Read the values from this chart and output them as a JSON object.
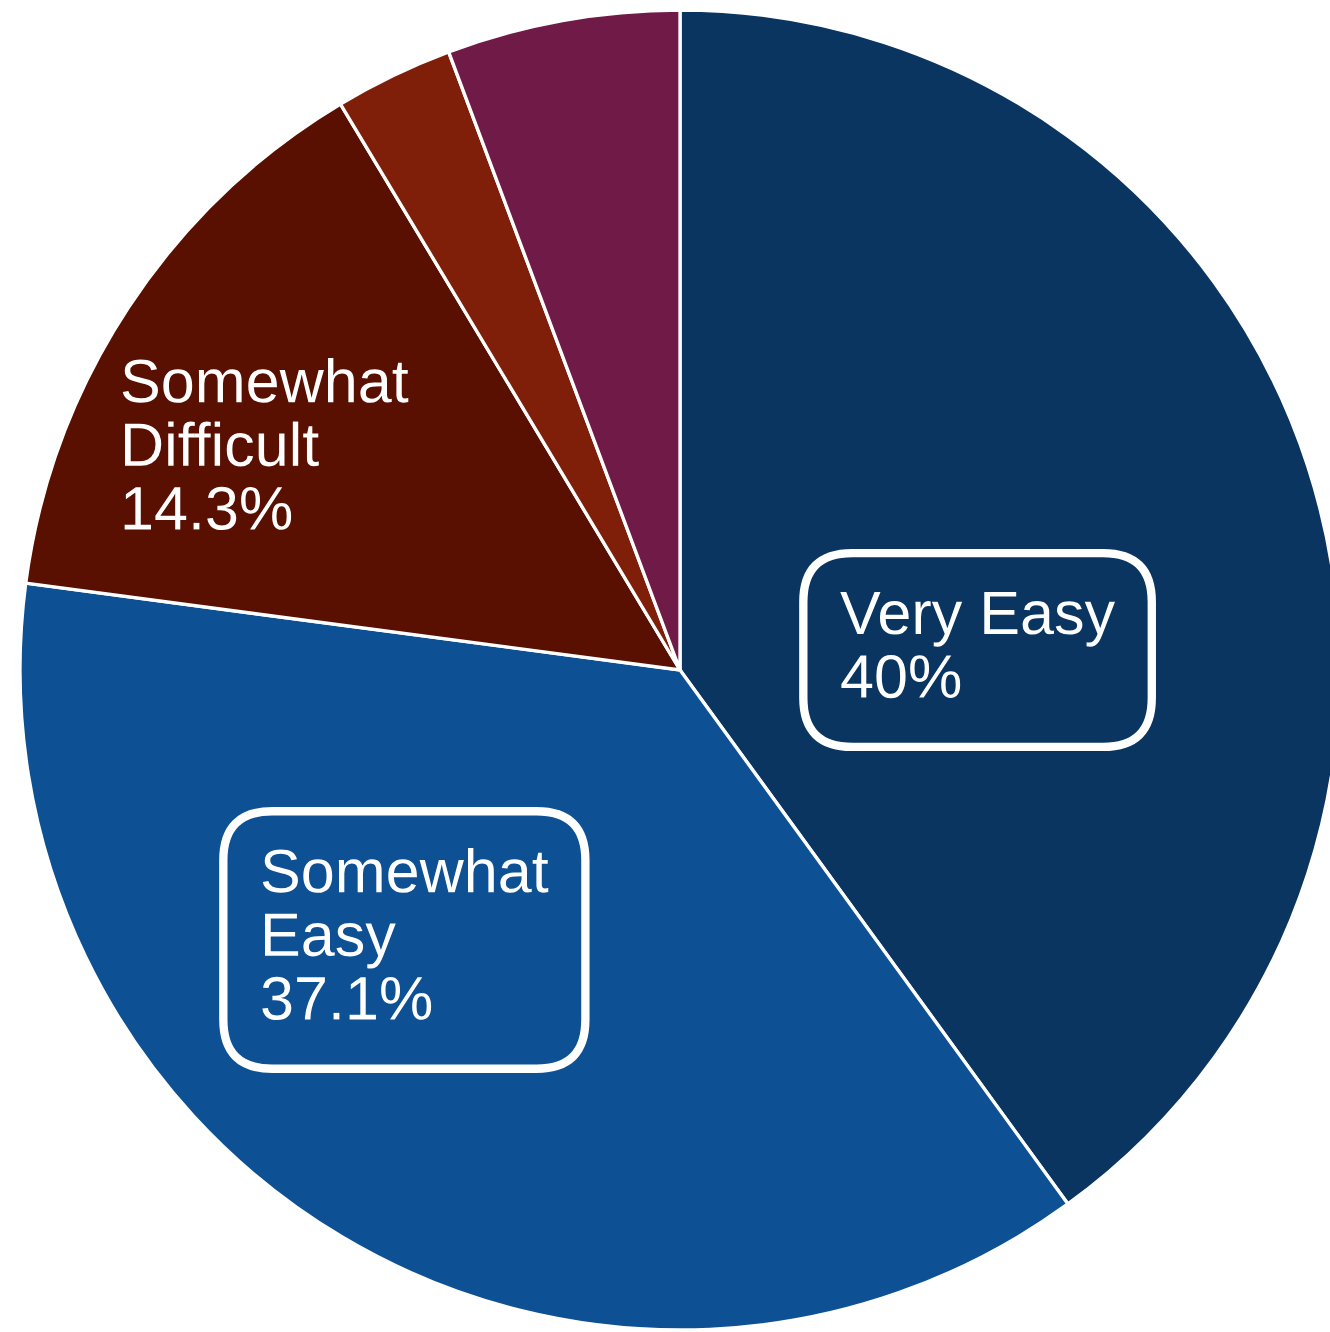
{
  "chart_data": {
    "type": "pie",
    "categories": [
      "Very Easy",
      "Somewhat Easy",
      "Somewhat Difficult",
      null,
      null
    ],
    "values": [
      40,
      37.1,
      14.3,
      2.9,
      5.7
    ],
    "colors": [
      "#0a3560",
      "#0d5094",
      "#5a1000",
      "#7f1f0a",
      "#701a47"
    ],
    "value_labels": [
      "40%",
      "37.1%",
      "14.3%",
      null,
      null
    ]
  }
}
